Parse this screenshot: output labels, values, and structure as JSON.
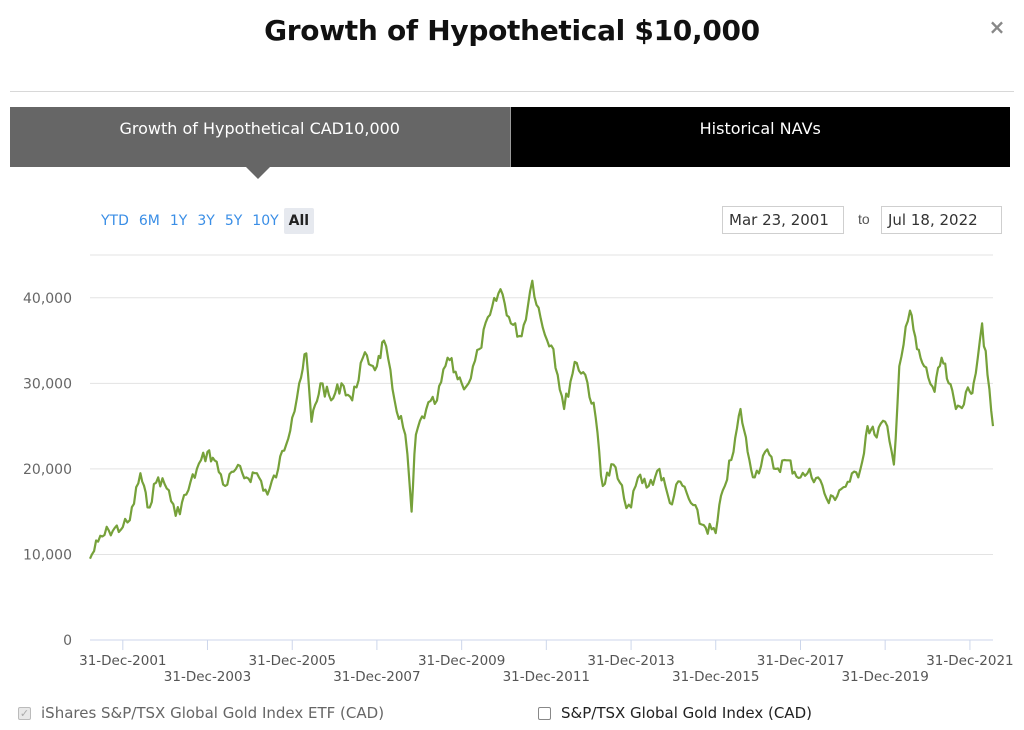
{
  "title": "Growth of Hypothetical $10,000",
  "close_icon": "×",
  "tabs": [
    {
      "label": "Growth of Hypothetical CAD10,000",
      "active": true
    },
    {
      "label": "Historical NAVs",
      "active": false
    }
  ],
  "ranges": [
    "YTD",
    "6M",
    "1Y",
    "3Y",
    "5Y",
    "10Y",
    "All"
  ],
  "selected_range": "All",
  "date_from": "Mar 23, 2001",
  "to_label": "to",
  "date_to": "Jul 18, 2022",
  "legend": [
    {
      "label": "iShares S&P/TSX Global Gold Index ETF (CAD)",
      "checked": true
    },
    {
      "label": "S&P/TSX Global Gold Index (CAD)",
      "checked": false
    }
  ],
  "colors": {
    "series": "#76a13a",
    "grid": "#e3e3e3",
    "axis": "#ccd6eb"
  },
  "chart_data": {
    "type": "line",
    "ylim": [
      0,
      45000
    ],
    "yticks": [
      0,
      10000,
      20000,
      30000,
      40000
    ],
    "ytick_labels": [
      "0",
      "10,000",
      "20,000",
      "30,000",
      "40,000"
    ],
    "xlim": [
      "2001-03-23",
      "2022-07-18"
    ],
    "xtick_labels": [
      {
        "date": "2001-12-31",
        "label": "31-Dec-2001"
      },
      {
        "date": "2003-12-31",
        "label": "31-Dec-2003"
      },
      {
        "date": "2005-12-31",
        "label": "31-Dec-2005"
      },
      {
        "date": "2007-12-31",
        "label": "31-Dec-2007"
      },
      {
        "date": "2009-12-31",
        "label": "31-Dec-2009"
      },
      {
        "date": "2011-12-31",
        "label": "31-Dec-2011"
      },
      {
        "date": "2013-12-31",
        "label": "31-Dec-2013"
      },
      {
        "date": "2015-12-31",
        "label": "31-Dec-2015"
      },
      {
        "date": "2017-12-31",
        "label": "31-Dec-2017"
      },
      {
        "date": "2019-12-31",
        "label": "31-Dec-2019"
      },
      {
        "date": "2021-12-31",
        "label": "31-Dec-2021"
      }
    ],
    "series": [
      {
        "name": "iShares S&P/TSX Global Gold Index ETF (CAD)",
        "points": [
          [
            "2001-03-23",
            9500
          ],
          [
            "2001-06-01",
            11500
          ],
          [
            "2001-09-01",
            12800
          ],
          [
            "2001-12-31",
            13200
          ],
          [
            "2002-03-01",
            14000
          ],
          [
            "2002-06-01",
            19500
          ],
          [
            "2002-08-01",
            15500
          ],
          [
            "2002-11-01",
            19000
          ],
          [
            "2003-02-01",
            17500
          ],
          [
            "2003-04-01",
            14500
          ],
          [
            "2003-07-01",
            17000
          ],
          [
            "2003-10-01",
            20000
          ],
          [
            "2003-12-31",
            22000
          ],
          [
            "2004-03-01",
            21000
          ],
          [
            "2004-06-01",
            18000
          ],
          [
            "2004-09-01",
            20000
          ],
          [
            "2004-12-01",
            19000
          ],
          [
            "2005-03-01",
            19500
          ],
          [
            "2005-06-01",
            17000
          ],
          [
            "2005-09-01",
            20000
          ],
          [
            "2005-12-31",
            26000
          ],
          [
            "2006-03-01",
            30000
          ],
          [
            "2006-05-01",
            33500
          ],
          [
            "2006-06-15",
            25500
          ],
          [
            "2006-09-01",
            30000
          ],
          [
            "2006-12-01",
            28000
          ],
          [
            "2007-03-01",
            30000
          ],
          [
            "2007-06-01",
            28000
          ],
          [
            "2007-09-01",
            33000
          ],
          [
            "2007-12-31",
            32000
          ],
          [
            "2008-03-01",
            35000
          ],
          [
            "2008-06-01",
            28000
          ],
          [
            "2008-09-01",
            24000
          ],
          [
            "2008-10-25",
            15000
          ],
          [
            "2008-12-01",
            24000
          ],
          [
            "2009-03-01",
            27000
          ],
          [
            "2009-06-01",
            28000
          ],
          [
            "2009-09-01",
            33000
          ],
          [
            "2009-12-31",
            30000
          ],
          [
            "2010-03-01",
            30000
          ],
          [
            "2010-06-01",
            34000
          ],
          [
            "2010-09-01",
            38000
          ],
          [
            "2010-12-01",
            41000
          ],
          [
            "2011-03-01",
            37000
          ],
          [
            "2011-06-01",
            35500
          ],
          [
            "2011-09-01",
            42000
          ],
          [
            "2011-12-01",
            36500
          ],
          [
            "2012-03-01",
            34000
          ],
          [
            "2012-06-01",
            27000
          ],
          [
            "2012-09-01",
            32500
          ],
          [
            "2012-12-01",
            31000
          ],
          [
            "2013-03-01",
            26000
          ],
          [
            "2013-05-01",
            18000
          ],
          [
            "2013-08-01",
            20500
          ],
          [
            "2013-11-01",
            16500
          ],
          [
            "2013-12-31",
            15500
          ],
          [
            "2014-03-01",
            19000
          ],
          [
            "2014-06-01",
            18000
          ],
          [
            "2014-09-01",
            20000
          ],
          [
            "2014-12-01",
            16000
          ],
          [
            "2015-03-01",
            18500
          ],
          [
            "2015-06-01",
            16000
          ],
          [
            "2015-09-01",
            13500
          ],
          [
            "2015-12-31",
            12500
          ],
          [
            "2016-03-01",
            17500
          ],
          [
            "2016-06-01",
            22000
          ],
          [
            "2016-08-01",
            27000
          ],
          [
            "2016-10-01",
            22000
          ],
          [
            "2016-12-01",
            19000
          ],
          [
            "2017-03-01",
            22000
          ],
          [
            "2017-06-01",
            20000
          ],
          [
            "2017-09-01",
            21000
          ],
          [
            "2017-12-31",
            19000
          ],
          [
            "2018-03-01",
            19500
          ],
          [
            "2018-06-01",
            19000
          ],
          [
            "2018-09-01",
            16000
          ],
          [
            "2018-12-01",
            17500
          ],
          [
            "2019-03-01",
            18500
          ],
          [
            "2019-06-01",
            20000
          ],
          [
            "2019-08-01",
            25000
          ],
          [
            "2019-10-01",
            24000
          ],
          [
            "2019-12-31",
            25500
          ],
          [
            "2020-03-15",
            20500
          ],
          [
            "2020-05-01",
            32000
          ],
          [
            "2020-08-01",
            38500
          ],
          [
            "2020-10-01",
            34000
          ],
          [
            "2020-12-01",
            32000
          ],
          [
            "2021-03-01",
            29000
          ],
          [
            "2021-05-01",
            33000
          ],
          [
            "2021-07-01",
            30000
          ],
          [
            "2021-09-01",
            27000
          ],
          [
            "2021-12-31",
            29000
          ],
          [
            "2022-02-01",
            30000
          ],
          [
            "2022-04-15",
            37000
          ],
          [
            "2022-06-01",
            31000
          ],
          [
            "2022-07-18",
            25000
          ]
        ]
      }
    ]
  }
}
